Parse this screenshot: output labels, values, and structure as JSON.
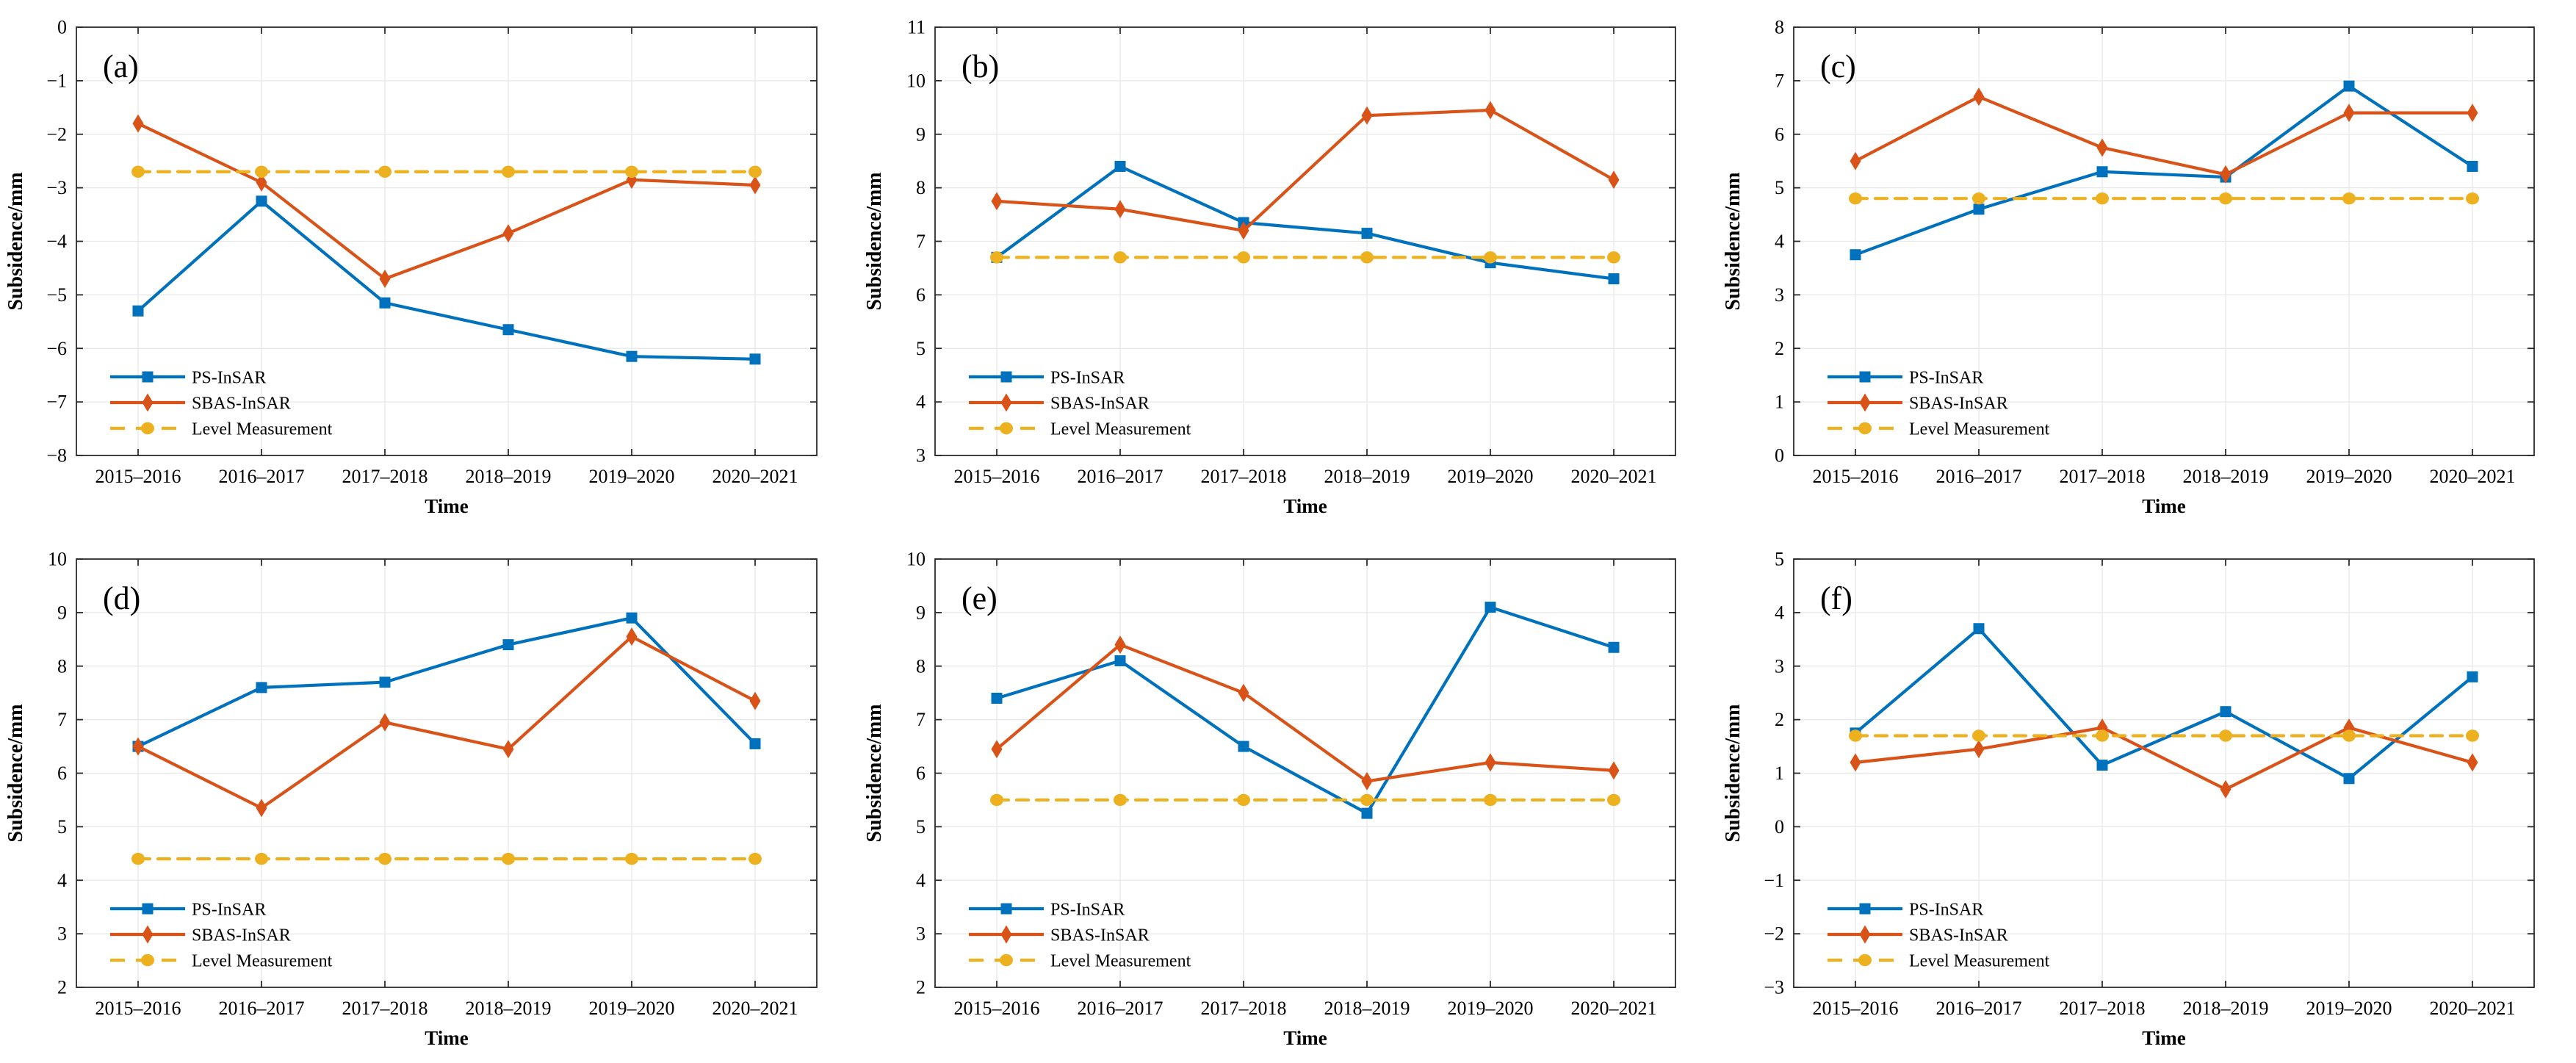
{
  "figure": {
    "xlabel": "Time",
    "ylabel": "Subsidence/mm",
    "categories": [
      "2015–2016",
      "2016–2017",
      "2017–2018",
      "2018–2019",
      "2019–2020",
      "2020–2021"
    ],
    "legend": [
      {
        "name": "PS-InSAR",
        "marker": "square",
        "dash": "solid",
        "color": "#0072BD"
      },
      {
        "name": "SBAS-InSAR",
        "marker": "diamond",
        "dash": "solid",
        "color": "#D95319"
      },
      {
        "name": "Level Measurement",
        "marker": "circle",
        "dash": "dashed",
        "color": "#EDB120"
      }
    ],
    "style": {
      "grid_color": "#E7E7E7",
      "axis_color": "#2B2B2B",
      "background": "#FFFFFF",
      "grid": "on",
      "legend_position": "lower-left"
    }
  },
  "chart_data": [
    {
      "panel": "(a)",
      "type": "line",
      "categories": [
        "2015–2016",
        "2016–2017",
        "2017–2018",
        "2018–2019",
        "2019–2020",
        "2020–2021"
      ],
      "xlabel": "Time",
      "ylabel": "Subsidence/mm",
      "ylim": [
        -8,
        0
      ],
      "ytick_step": 1,
      "series": [
        {
          "name": "PS-InSAR",
          "values": [
            -5.3,
            -3.25,
            -5.15,
            -5.65,
            -6.15,
            -6.2
          ]
        },
        {
          "name": "SBAS-InSAR",
          "values": [
            -1.8,
            -2.9,
            -4.7,
            -3.85,
            -2.85,
            -2.95
          ]
        },
        {
          "name": "Level Measurement",
          "values": [
            -2.7,
            -2.7,
            -2.7,
            -2.7,
            -2.7,
            -2.7
          ]
        }
      ]
    },
    {
      "panel": "(b)",
      "type": "line",
      "categories": [
        "2015–2016",
        "2016–2017",
        "2017–2018",
        "2018–2019",
        "2019–2020",
        "2020–2021"
      ],
      "xlabel": "Time",
      "ylabel": "Subsidence/mm",
      "ylim": [
        3,
        11
      ],
      "ytick_step": 1,
      "series": [
        {
          "name": "PS-InSAR",
          "values": [
            6.7,
            8.4,
            7.35,
            7.15,
            6.6,
            6.3
          ]
        },
        {
          "name": "SBAS-InSAR",
          "values": [
            7.75,
            7.6,
            7.2,
            9.35,
            9.45,
            8.15
          ]
        },
        {
          "name": "Level Measurement",
          "values": [
            6.7,
            6.7,
            6.7,
            6.7,
            6.7,
            6.7
          ]
        }
      ]
    },
    {
      "panel": "(c)",
      "type": "line",
      "categories": [
        "2015–2016",
        "2016–2017",
        "2017–2018",
        "2018–2019",
        "2019–2020",
        "2020–2021"
      ],
      "xlabel": "Time",
      "ylabel": "Subsidence/mm",
      "ylim": [
        0,
        8
      ],
      "ytick_step": 1,
      "series": [
        {
          "name": "PS-InSAR",
          "values": [
            3.75,
            4.6,
            5.3,
            5.2,
            6.9,
            5.4
          ]
        },
        {
          "name": "SBAS-InSAR",
          "values": [
            5.5,
            6.7,
            5.75,
            5.25,
            6.4,
            6.4
          ]
        },
        {
          "name": "Level Measurement",
          "values": [
            4.8,
            4.8,
            4.8,
            4.8,
            4.8,
            4.8
          ]
        }
      ]
    },
    {
      "panel": "(d)",
      "type": "line",
      "categories": [
        "2015–2016",
        "2016–2017",
        "2017–2018",
        "2018–2019",
        "2019–2020",
        "2020–2021"
      ],
      "xlabel": "Time",
      "ylabel": "Subsidence/mm",
      "ylim": [
        2,
        10
      ],
      "ytick_step": 1,
      "series": [
        {
          "name": "PS-InSAR",
          "values": [
            6.5,
            7.6,
            7.7,
            8.4,
            8.9,
            6.55
          ]
        },
        {
          "name": "SBAS-InSAR",
          "values": [
            6.5,
            5.35,
            6.95,
            6.45,
            8.55,
            7.35
          ]
        },
        {
          "name": "Level Measurement",
          "values": [
            4.4,
            4.4,
            4.4,
            4.4,
            4.4,
            4.4
          ]
        }
      ]
    },
    {
      "panel": "(e)",
      "type": "line",
      "categories": [
        "2015–2016",
        "2016–2017",
        "2017–2018",
        "2018–2019",
        "2019–2020",
        "2020–2021"
      ],
      "xlabel": "Time",
      "ylabel": "Subsidence/mm",
      "ylim": [
        2,
        10
      ],
      "ytick_step": 1,
      "series": [
        {
          "name": "PS-InSAR",
          "values": [
            7.4,
            8.1,
            6.5,
            5.25,
            9.1,
            8.35
          ]
        },
        {
          "name": "SBAS-InSAR",
          "values": [
            6.45,
            8.4,
            7.5,
            5.85,
            6.2,
            6.05
          ]
        },
        {
          "name": "Level Measurement",
          "values": [
            5.5,
            5.5,
            5.5,
            5.5,
            5.5,
            5.5
          ]
        }
      ]
    },
    {
      "panel": "(f)",
      "type": "line",
      "categories": [
        "2015–2016",
        "2016–2017",
        "2017–2018",
        "2018–2019",
        "2019–2020",
        "2020–2021"
      ],
      "xlabel": "Time",
      "ylabel": "Subsidence/mm",
      "ylim": [
        -3,
        5
      ],
      "ytick_step": 1,
      "series": [
        {
          "name": "PS-InSAR",
          "values": [
            1.75,
            3.7,
            1.15,
            2.15,
            0.9,
            2.8
          ]
        },
        {
          "name": "SBAS-InSAR",
          "values": [
            1.2,
            1.45,
            1.85,
            0.7,
            1.85,
            1.2
          ]
        },
        {
          "name": "Level Measurement",
          "values": [
            1.7,
            1.7,
            1.7,
            1.7,
            1.7,
            1.7
          ]
        }
      ]
    }
  ]
}
